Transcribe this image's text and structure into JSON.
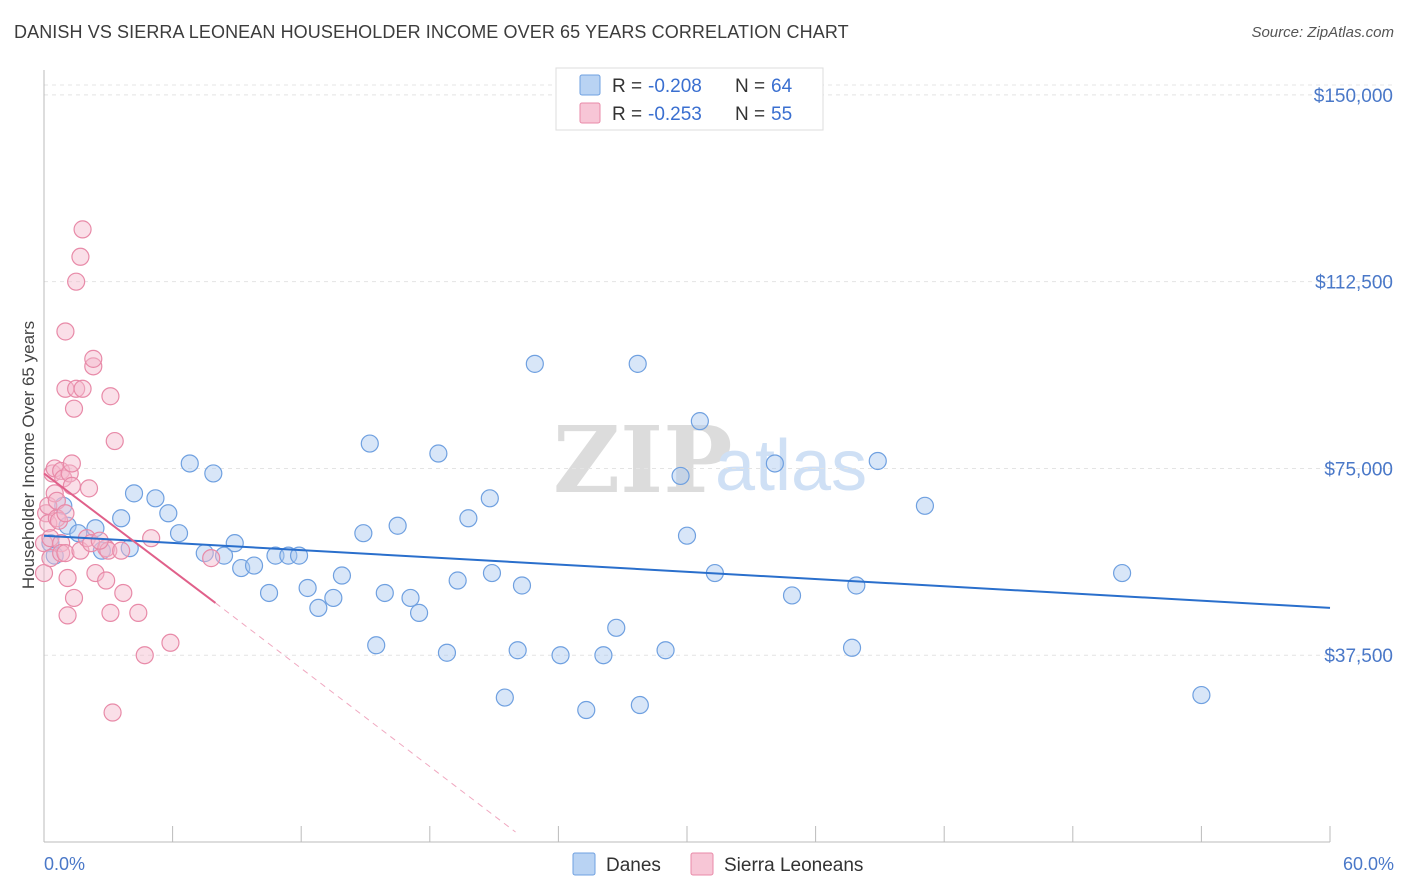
{
  "title": "DANISH VS SIERRA LEONEAN HOUSEHOLDER INCOME OVER 65 YEARS CORRELATION CHART",
  "source": "Source: ZipAtlas.com",
  "watermark": {
    "zip": "ZIP",
    "atlas": "atlas"
  },
  "legend_top": [
    {
      "r_label": "R =",
      "r_value": "-0.208",
      "n_label": "N =",
      "n_value": "64",
      "color": "#a8c8f0"
    },
    {
      "r_label": "R =",
      "r_value": "-0.253",
      "n_label": "N =",
      "n_value": "55",
      "color": "#f5b8cc"
    }
  ],
  "legend_bottom": [
    {
      "name": "Danes",
      "color": "#a8c8f0"
    },
    {
      "name": "Sierra Leoneans",
      "color": "#f5b8cc"
    }
  ],
  "chart_data": {
    "type": "scatter",
    "title": "DANISH VS SIERRA LEONEAN HOUSEHOLDER INCOME OVER 65 YEARS CORRELATION CHART",
    "xlabel": "",
    "ylabel": "Householder Income Over 65 years",
    "xlim": [
      0,
      60
    ],
    "ylim": [
      0,
      155000
    ],
    "x_tick_labels": [
      "0.0%",
      "60.0%"
    ],
    "y_ticks": [
      37500,
      75000,
      112500,
      150000
    ],
    "y_tick_labels": [
      "$37,500",
      "$75,000",
      "$112,500",
      "$150,000"
    ],
    "grid": true,
    "series": [
      {
        "name": "Danes",
        "color": "#6fa0e0",
        "fill": "#a8c8f0",
        "trend": {
          "x": [
            0,
            60
          ],
          "y": [
            61500,
            47000
          ],
          "color": "#2a6fcc"
        },
        "points": [
          [
            0.3,
            60000
          ],
          [
            0.5,
            57500
          ],
          [
            0.9,
            67500
          ],
          [
            1.1,
            63500
          ],
          [
            1.6,
            62000
          ],
          [
            2.4,
            63000
          ],
          [
            2.7,
            58500
          ],
          [
            3.6,
            65000
          ],
          [
            4.0,
            59000
          ],
          [
            4.2,
            70000
          ],
          [
            5.2,
            69000
          ],
          [
            5.8,
            66000
          ],
          [
            6.3,
            62000
          ],
          [
            6.8,
            76000
          ],
          [
            7.5,
            58000
          ],
          [
            7.9,
            74000
          ],
          [
            8.4,
            57500
          ],
          [
            8.9,
            60000
          ],
          [
            9.2,
            55000
          ],
          [
            9.8,
            55500
          ],
          [
            10.5,
            50000
          ],
          [
            10.8,
            57500
          ],
          [
            11.4,
            57500
          ],
          [
            11.9,
            57500
          ],
          [
            12.3,
            51000
          ],
          [
            12.8,
            47000
          ],
          [
            13.5,
            49000
          ],
          [
            13.9,
            53500
          ],
          [
            14.9,
            62000
          ],
          [
            15.2,
            80000
          ],
          [
            15.5,
            39500
          ],
          [
            15.9,
            50000
          ],
          [
            16.5,
            63500
          ],
          [
            17.1,
            49000
          ],
          [
            17.5,
            46000
          ],
          [
            18.4,
            78000
          ],
          [
            18.8,
            38000
          ],
          [
            19.3,
            52500
          ],
          [
            19.8,
            65000
          ],
          [
            20.8,
            69000
          ],
          [
            20.9,
            54000
          ],
          [
            21.5,
            29000
          ],
          [
            22.1,
            38500
          ],
          [
            22.3,
            51500
          ],
          [
            22.9,
            96000
          ],
          [
            24.1,
            37500
          ],
          [
            25.3,
            26500
          ],
          [
            26.1,
            37500
          ],
          [
            26.7,
            43000
          ],
          [
            27.7,
            96000
          ],
          [
            27.8,
            27500
          ],
          [
            29.0,
            38500
          ],
          [
            29.7,
            73500
          ],
          [
            30.0,
            61500
          ],
          [
            30.6,
            84500
          ],
          [
            31.3,
            54000
          ],
          [
            34.1,
            76000
          ],
          [
            34.9,
            49500
          ],
          [
            37.7,
            39000
          ],
          [
            37.9,
            51500
          ],
          [
            38.9,
            76500
          ],
          [
            41.1,
            67500
          ],
          [
            50.3,
            54000
          ],
          [
            54.0,
            29500
          ]
        ]
      },
      {
        "name": "Sierra Leoneans",
        "color": "#e88aa8",
        "fill": "#f5b8cc",
        "trend": {
          "x": [
            0,
            8
          ],
          "y": [
            74000,
            48000
          ],
          "color": "#e0608a"
        },
        "trend_dashed": {
          "x": [
            8,
            22
          ],
          "y": [
            48000,
            2000
          ],
          "color": "#f0a8c0"
        },
        "points": [
          [
            0.0,
            60000
          ],
          [
            0.0,
            54000
          ],
          [
            0.1,
            66000
          ],
          [
            0.2,
            64000
          ],
          [
            0.2,
            67500
          ],
          [
            0.3,
            61000
          ],
          [
            0.3,
            57000
          ],
          [
            0.4,
            74000
          ],
          [
            0.5,
            75000
          ],
          [
            0.5,
            70000
          ],
          [
            0.6,
            68500
          ],
          [
            0.6,
            65000
          ],
          [
            0.7,
            64500
          ],
          [
            0.8,
            60000
          ],
          [
            0.8,
            58000
          ],
          [
            0.8,
            74500
          ],
          [
            0.9,
            73000
          ],
          [
            1.0,
            102500
          ],
          [
            1.0,
            91000
          ],
          [
            1.0,
            66000
          ],
          [
            1.0,
            58000
          ],
          [
            1.1,
            53000
          ],
          [
            1.1,
            45500
          ],
          [
            1.2,
            74000
          ],
          [
            1.3,
            71500
          ],
          [
            1.3,
            76000
          ],
          [
            1.4,
            49000
          ],
          [
            1.4,
            87000
          ],
          [
            1.5,
            112500
          ],
          [
            1.5,
            91000
          ],
          [
            1.7,
            117500
          ],
          [
            1.7,
            58500
          ],
          [
            1.8,
            123000
          ],
          [
            1.8,
            91000
          ],
          [
            2.0,
            61000
          ],
          [
            2.1,
            71000
          ],
          [
            2.2,
            60000
          ],
          [
            2.3,
            95500
          ],
          [
            2.3,
            97000
          ],
          [
            2.4,
            54000
          ],
          [
            2.9,
            52500
          ],
          [
            2.9,
            59000
          ],
          [
            3.0,
            58500
          ],
          [
            3.1,
            89500
          ],
          [
            3.1,
            46000
          ],
          [
            3.2,
            26000
          ],
          [
            3.3,
            80500
          ],
          [
            3.6,
            58500
          ],
          [
            3.7,
            50000
          ],
          [
            4.4,
            46000
          ],
          [
            4.7,
            37500
          ],
          [
            5.0,
            61000
          ],
          [
            5.9,
            40000
          ],
          [
            7.8,
            57000
          ],
          [
            2.6,
            60500
          ]
        ]
      }
    ]
  }
}
